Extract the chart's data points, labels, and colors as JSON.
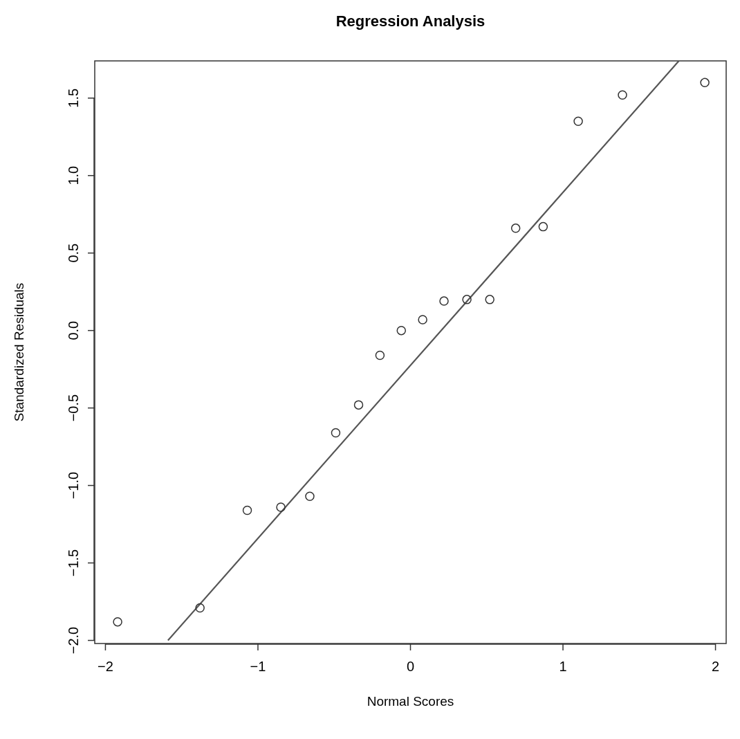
{
  "chart_data": {
    "type": "scatter",
    "title": "Regression Analysis",
    "xlabel": "Normal Scores",
    "ylabel": "Standardized Residuals",
    "xlim": [
      -2.07,
      2.07
    ],
    "ylim": [
      -2.02,
      1.74
    ],
    "xticks": [
      {
        "value": -2,
        "label": "−2"
      },
      {
        "value": -1,
        "label": "−1"
      },
      0,
      1,
      2
    ],
    "yticks": [
      {
        "value": -2,
        "label": "−2.0"
      },
      {
        "value": -1.5,
        "label": "−1.5"
      },
      {
        "value": -1,
        "label": "−1.0"
      },
      {
        "value": -0.5,
        "label": "−0.5"
      },
      {
        "value": 0,
        "label": "0.0"
      },
      0.5,
      {
        "value": 1,
        "label": "1.0"
      },
      1.5
    ],
    "grid": false,
    "series": [
      {
        "color": "#333333",
        "marker": "circle",
        "x": [
          -1.92,
          -1.38,
          -1.07,
          -0.85,
          -0.66,
          -0.49,
          -0.34,
          -0.2,
          -0.06,
          0.08,
          0.22,
          0.37,
          0.52,
          0.69,
          0.87,
          1.1,
          1.39,
          1.93
        ],
        "values": [
          -1.88,
          -1.79,
          -1.16,
          -1.14,
          -1.07,
          -0.66,
          -0.48,
          -0.16,
          0.0,
          0.07,
          0.19,
          0.2,
          0.2,
          0.66,
          0.67,
          1.35,
          1.52,
          1.6
        ]
      },
      {
        "type": "line",
        "color": "#555555",
        "line_style": "solid",
        "marker": "none",
        "x": [
          -1.59,
          1.76
        ],
        "values": [
          -2.0,
          1.74
        ]
      }
    ]
  }
}
